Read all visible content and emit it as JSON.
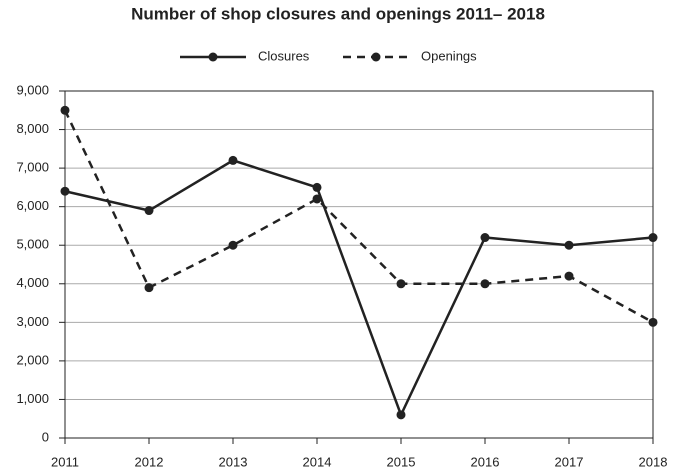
{
  "chart_data": {
    "type": "line",
    "title": "Number of shop closures and openings 2011– 2018",
    "categories": [
      "2011",
      "2012",
      "2013",
      "2014",
      "2015",
      "2016",
      "2017",
      "2018"
    ],
    "series": [
      {
        "name": "Closures",
        "color": "#222222",
        "style": "solid",
        "values": [
          6400,
          5900,
          7200,
          6500,
          600,
          5200,
          5000,
          5200
        ]
      },
      {
        "name": "Openings",
        "color": "#222222",
        "style": "dashed",
        "values": [
          8500,
          3900,
          5000,
          6200,
          4000,
          4000,
          4200,
          3000
        ]
      }
    ],
    "ylim": [
      0,
      9000
    ],
    "yticks": [
      0,
      {
        "value": 1000,
        "label": "1,000"
      },
      {
        "value": 2000,
        "label": "2,000"
      },
      {
        "value": 3000,
        "label": "3,000"
      },
      {
        "value": 4000,
        "label": "4,000"
      },
      {
        "value": 5000,
        "label": "5,000"
      },
      {
        "value": 6000,
        "label": "6,000"
      },
      {
        "value": 7000,
        "label": "7,000"
      },
      {
        "value": 8000,
        "label": "8,000"
      },
      {
        "value": 9000,
        "label": "9,000"
      }
    ],
    "grid": true,
    "legend": "top"
  }
}
